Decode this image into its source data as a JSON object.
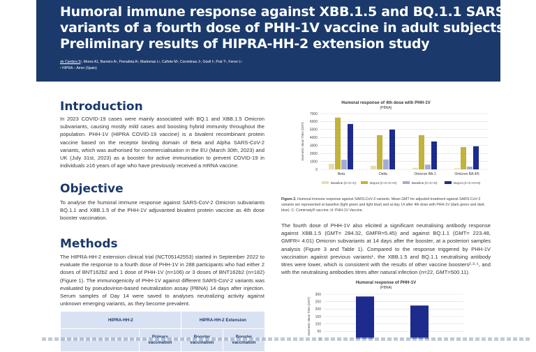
{
  "header": {
    "title_lines": [
      "Humoral immune response against XBB.1.5 and BQ.1.1 SARS-CoV-2",
      "variants of a fourth dose of PHH-1V vaccine in adult subjects.",
      "Preliminary results of HIPRA-HH-2 extension study"
    ],
    "authors_first": "de Cambra S",
    "authors_rest": "¹, Moros A1, Barreiro A¹, Prenafeta A¹, Madrenas L¹, Cañete M¹, Corominas J¹, Güell I¹, Prat T¹, Ferrer L¹",
    "affiliation": "¹ HIPRA – Amer (Spain)"
  },
  "introduction": {
    "heading": "Introduction",
    "text": "In 2023 COVID-19 cases were mainly associated with BQ.1 and XBB.1.5 Omicron subvariants, causing mostly mild cases and boosting hybrid immunity throughout the population. PHH-1V (HIPRA COVID-19 vaccine) is a bivalent recombinant protein vaccine based on the receptor binding domain of Beta and Alpha SARS-CoV-2 variants, which was authorised for commercialisation in the EU (March 30th, 2023) and UK (July 31st, 2023) as a booster for active immunisation to prevent COVID-19 in individuals ≥16 years of age who have previously received a mRNA vaccine."
  },
  "objective": {
    "heading": "Objective",
    "text": "To analyse the humoral immune response against SARS-CoV-2 Omicron subvariants BQ.1.1 and XBB.1.5 of the PHH-1V adjuvanted bivalent protein vaccine as 4th dose booster vaccination."
  },
  "methods": {
    "heading": "Methods",
    "text": "The HIPRA-HH-2 extension clinical trial (NCT05142553) started in September 2022 to evaluate the response to a fourth dose of PHH-1V in 288 participants who had either 2 doses of BNT162b2 and 1 dose of PHH-1V (n=106) or 3 doses of BNT162b2 (n=182) (Figure 1). The immunogenicity of PHH-1V against different SARS-CoV-2 variants was evaluated by pseudovirion-based neutralization assay (PBNA) 14 days after injection. Serum samples of Day 14 were saved to analyses neutralizing activity against unknown emerging variants, as they become prevalent."
  },
  "table": {
    "group1": "HIPRA-HH-2",
    "group2": "HIPRA-HH-2 Extension",
    "col_primary": "Primary vaccination",
    "col_booster1": "Booster vaccination",
    "col_booster2": "Booster vaccination"
  },
  "figure2": {
    "title": "Humoral response of 4th dose with  PHH-1V",
    "subtitle": "(PBNA)",
    "caption_label": "Figure 2.",
    "caption": " Humoral immune response against SARS-CoV-2 variants. Mean GMT for adjusted treatment against SARS-CoV-2 variants are represented at baseline (light green and light blue) and at day 14 after 4th dose with PHH-1V (dark green and dark blue). C: Comirnaty® vaccine; H: PHH-1V Vaccine."
  },
  "results_text": "The fourth dose of PHH-1V also elicited a significant neutralising antibody response against XBB.1.5 (GMT= 284.32, GMFR=5.45) and against BQ.1.1 (GMT= 223.48, GMFR= 4.01) Omicron subvariants at 14 days after the booster, at a posteriori samples analysis (Figure 3 and Table 1). Compared to the response triggered by PHH-1V vaccination against previous variants¹, the XBB.1.5 and BQ.1.1 neutralising antibody titres were lower, which is consistent with the results of other vaccine boosters²·³·⁴, and with the neutralising antibodies titres after natural infection (n=22, GMT=500.11).",
  "figure3": {
    "title": "Humoral response of PHH-1V",
    "subtitle": "(PBNA)"
  },
  "colors": {
    "navy": "#1b3a6b",
    "baseline_cch": "#e6dfad",
    "day14_cch": "#c2b33a",
    "baseline_cchh": "#a3acd6",
    "day14_cchh": "#1c2b8c"
  },
  "chart_data": [
    {
      "type": "bar",
      "title": "Humoral response of 4th dose with  PHH-1V",
      "subtitle": "(PBNA)",
      "ylabel": "Geometric Mean Titres (GMT)",
      "ylim": [
        0,
        7000
      ],
      "yticks": [
        0,
        1000,
        2000,
        3000,
        4000,
        5000,
        6000,
        7000
      ],
      "categories": [
        "Beta",
        "Delta",
        "Omicron BA.1",
        "Omicron BA.4/5"
      ],
      "series": [
        {
          "name": "Baseline (C+C+C)",
          "values": [
            700,
            450,
            200,
            150
          ]
        },
        {
          "name": "Day14 (C+C+C+H)",
          "values": [
            6500,
            4300,
            4300,
            2800
          ]
        },
        {
          "name": "Baseline (C+C+H)",
          "values": [
            1200,
            1250,
            600,
            350
          ]
        },
        {
          "name": "Day14 (C+C+H+H)",
          "values": [
            5700,
            5000,
            3500,
            2900
          ]
        }
      ],
      "legend": "bottom",
      "grid": true
    },
    {
      "type": "bar",
      "title": "Humoral response of PHH-1V",
      "subtitle": "(PBNA)",
      "ylabel": "Geometric Mean Titres (GMT)",
      "ylim": [
        0,
        300
      ],
      "yticks": [
        0,
        50,
        100,
        150,
        200,
        250,
        300
      ],
      "values": [
        284.32,
        223.48
      ],
      "grid": true
    }
  ]
}
